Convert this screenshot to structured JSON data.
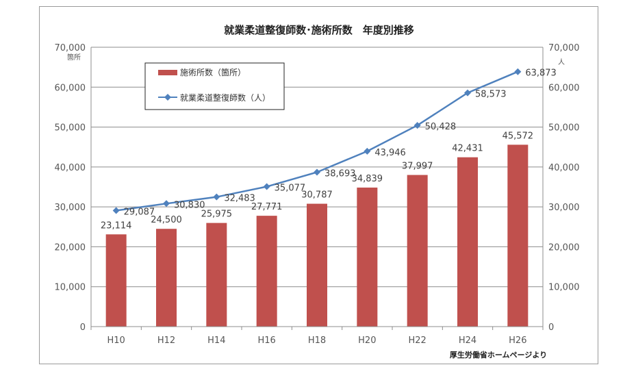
{
  "chart_data": {
    "type": "bar",
    "title": "就業柔道整復師数･施術所数　年度別推移",
    "categories": [
      "H10",
      "H12",
      "H14",
      "H16",
      "H18",
      "H20",
      "H22",
      "H24",
      "H26"
    ],
    "series": [
      {
        "name": "施術所数（箇所）",
        "type": "bar",
        "axis": "left",
        "color": "#c0504d",
        "values": [
          23114,
          24500,
          25975,
          27771,
          30787,
          34839,
          37997,
          42431,
          45572
        ],
        "labels": [
          "23,114",
          "24,500",
          "25,975",
          "27,771",
          "30,787",
          "34,839",
          "37,997",
          "42,431",
          "45,572"
        ]
      },
      {
        "name": "就業柔道整復師数（人）",
        "type": "line",
        "axis": "right",
        "color": "#4f81bd",
        "values": [
          29087,
          30830,
          32483,
          35077,
          38693,
          43946,
          50428,
          58573,
          63873
        ],
        "labels": [
          "29,087",
          "30,830",
          "32,483",
          "35,077",
          "38,693",
          "43,946",
          "50,428",
          "58,573",
          "63,873"
        ]
      }
    ],
    "y_left": {
      "ylim": [
        0,
        70000
      ],
      "unit": "箇所",
      "ticks": [
        "0",
        "10,000",
        "20,000",
        "30,000",
        "40,000",
        "50,000",
        "60,000",
        "70,000"
      ]
    },
    "y_right": {
      "ylim": [
        0,
        70000
      ],
      "unit": "人",
      "ticks": [
        "0",
        "10,000",
        "20,000",
        "30,000",
        "40,000",
        "50,000",
        "60,000",
        "70,000"
      ]
    },
    "grid": true,
    "legend_position": "top-left"
  },
  "source_note": "厚生労働省ホームページより"
}
